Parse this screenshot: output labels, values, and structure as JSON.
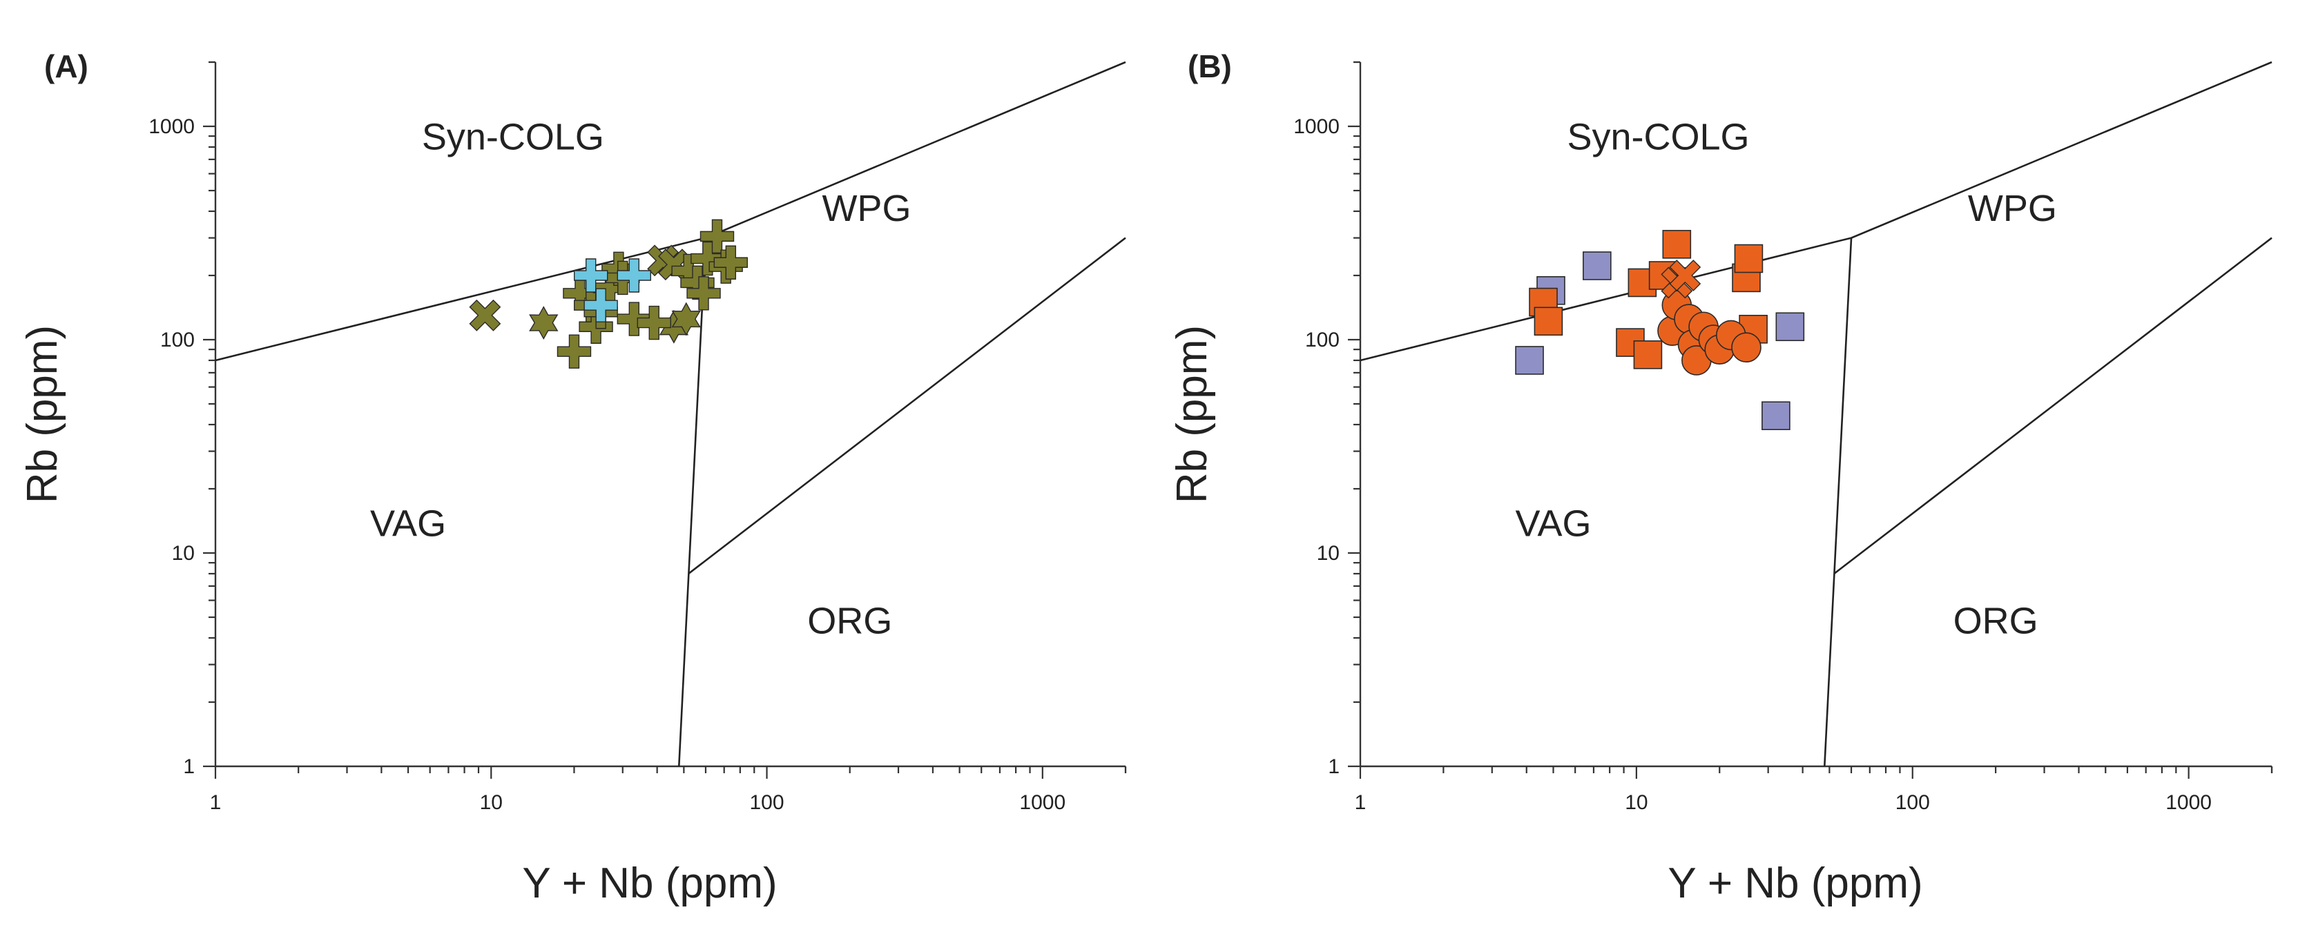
{
  "chart_data": [
    {
      "type": "scatter",
      "panel_label": "(A)",
      "xlabel": "Y + Nb (ppm)",
      "ylabel": "Rb (ppm)",
      "xscale": "log",
      "yscale": "log",
      "xlim": [
        1,
        2000
      ],
      "ylim": [
        1,
        2000
      ],
      "x_tick_labels": [
        "1",
        "10",
        "100",
        "1000"
      ],
      "y_tick_labels": [
        "1",
        "10",
        "100",
        "1000"
      ],
      "grid": false,
      "fields": [
        "Syn-COLG",
        "WPG",
        "VAG",
        "ORG"
      ],
      "boundaries": [
        [
          [
            1,
            80
          ],
          [
            60,
            300
          ],
          [
            2000,
            2000
          ]
        ],
        [
          [
            60,
            300
          ],
          [
            48,
            1
          ]
        ],
        [
          [
            52,
            8
          ],
          [
            2000,
            300
          ]
        ]
      ],
      "colors": {
        "olive": "#7c7c2e",
        "sky": "#6cc6e0"
      },
      "series": [
        {
          "marker": "x",
          "color": "#7c7c2e",
          "points": [
            [
              9.5,
              130
            ],
            [
              42,
              235
            ],
            [
              46,
              225
            ]
          ]
        },
        {
          "marker": "star",
          "color": "#7c7c2e",
          "points": [
            [
              15.5,
              120
            ],
            [
              46,
              115
            ],
            [
              51,
              125
            ]
          ]
        },
        {
          "marker": "plus",
          "color": "#7c7c2e",
          "points": [
            [
              20,
              88
            ],
            [
              21,
              165
            ],
            [
              23,
              145
            ],
            [
              24,
              115
            ],
            [
              25,
              135
            ],
            [
              27,
              175
            ],
            [
              29,
              215
            ],
            [
              30,
              195
            ],
            [
              33,
              125
            ],
            [
              39,
              120
            ],
            [
              52,
              210
            ],
            [
              56,
              185
            ],
            [
              59,
              165
            ],
            [
              61,
              240
            ],
            [
              66,
              305
            ],
            [
              71,
              220
            ],
            [
              74,
              230
            ]
          ]
        },
        {
          "marker": "plus",
          "color": "#6cc6e0",
          "points": [
            [
              23,
              200
            ],
            [
              25,
              145
            ],
            [
              33,
              200
            ]
          ]
        }
      ]
    },
    {
      "type": "scatter",
      "panel_label": "(B)",
      "xlabel": "Y + Nb (ppm)",
      "ylabel": "Rb (ppm)",
      "xscale": "log",
      "yscale": "log",
      "xlim": [
        1,
        2000
      ],
      "ylim": [
        1,
        2000
      ],
      "x_tick_labels": [
        "1",
        "10",
        "100",
        "1000"
      ],
      "y_tick_labels": [
        "1",
        "10",
        "100",
        "1000"
      ],
      "grid": false,
      "fields": [
        "Syn-COLG",
        "WPG",
        "VAG",
        "ORG"
      ],
      "boundaries": [
        [
          [
            1,
            80
          ],
          [
            60,
            300
          ],
          [
            2000,
            2000
          ]
        ],
        [
          [
            60,
            300
          ],
          [
            48,
            1
          ]
        ],
        [
          [
            52,
            8
          ],
          [
            2000,
            300
          ]
        ]
      ],
      "colors": {
        "orange": "#e8621d",
        "lavender": "#8f91c6"
      },
      "series": [
        {
          "marker": "square",
          "color": "#8f91c6",
          "points": [
            [
              4.1,
              80
            ],
            [
              4.9,
              170
            ],
            [
              7.2,
              222
            ],
            [
              32,
              44
            ],
            [
              36,
              115
            ]
          ]
        },
        {
          "marker": "square",
          "color": "#e8621d",
          "points": [
            [
              4.6,
              150
            ],
            [
              4.8,
              122
            ],
            [
              9.5,
              97
            ],
            [
              10.5,
              185
            ],
            [
              11,
              85
            ],
            [
              12.5,
              200
            ],
            [
              14,
              280
            ],
            [
              25,
              195
            ],
            [
              25.5,
              240
            ],
            [
              26.5,
              112
            ]
          ]
        },
        {
          "marker": "circle",
          "color": "#e8621d",
          "points": [
            [
              13.5,
              110
            ],
            [
              14,
              145
            ],
            [
              15.5,
              125
            ],
            [
              16,
              95
            ],
            [
              16.5,
              80
            ],
            [
              17.5,
              115
            ],
            [
              19,
              100
            ],
            [
              20,
              90
            ],
            [
              22,
              105
            ],
            [
              25,
              92
            ]
          ]
        },
        {
          "marker": "x",
          "color": "#e8621d",
          "points": [
            [
              14,
              185
            ],
            [
              15,
              200
            ]
          ]
        }
      ]
    }
  ]
}
